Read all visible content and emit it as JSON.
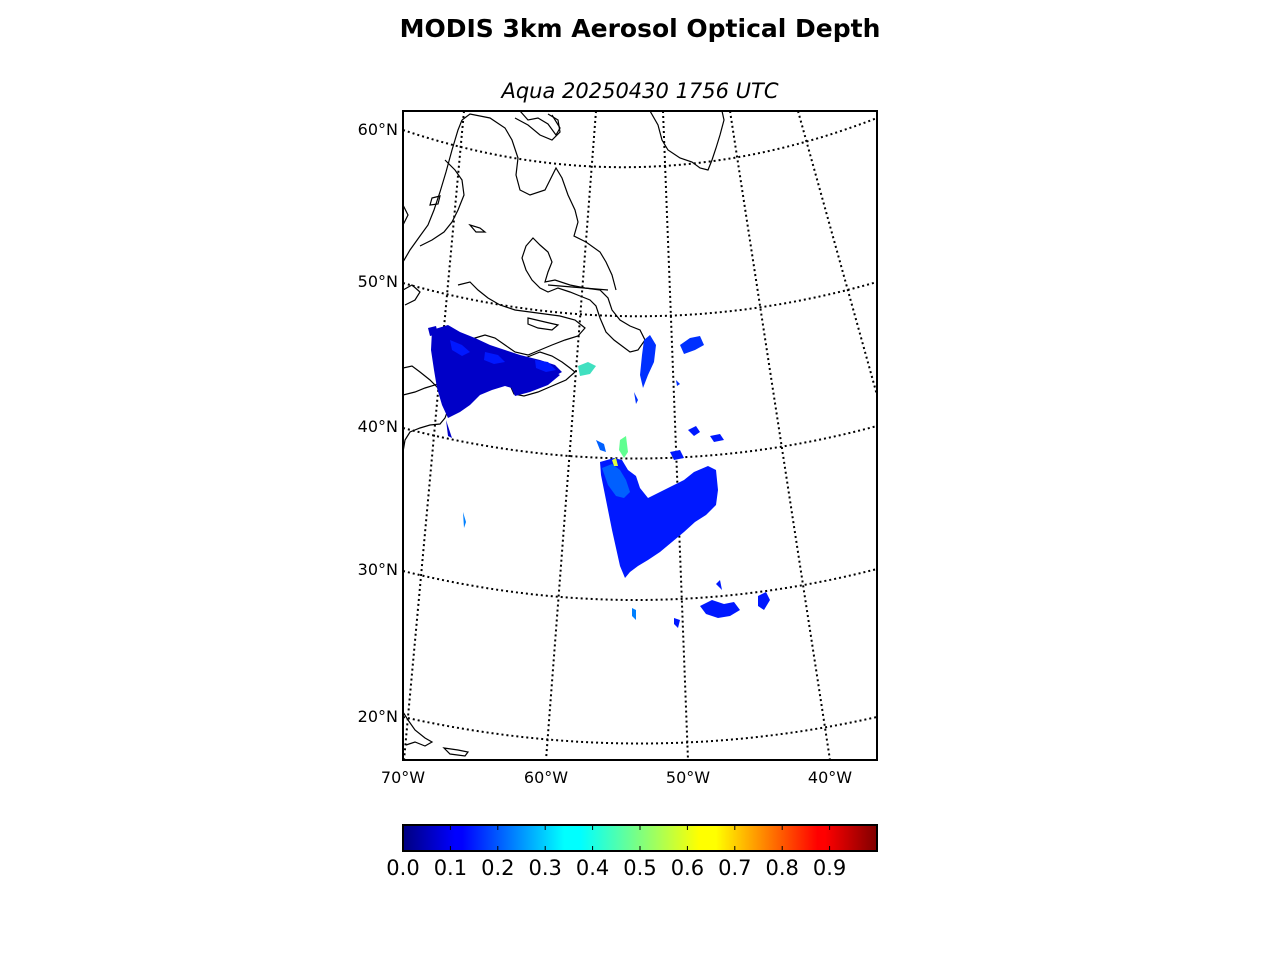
{
  "title": "MODIS 3km Aerosol Optical Depth",
  "subtitle": "Aqua 20250430 1756 UTC",
  "lat_labels": [
    "60°N",
    "50°N",
    "40°N",
    "30°N",
    "20°N"
  ],
  "lon_labels": [
    "70°W",
    "60°W",
    "50°W",
    "40°W"
  ],
  "colorbar": {
    "labels": [
      "0.0",
      "0.1",
      "0.2",
      "0.3",
      "0.4",
      "0.5",
      "0.6",
      "0.7",
      "0.8",
      "0.9"
    ],
    "range": [
      0,
      1
    ],
    "colormap": "jet"
  },
  "colors": {
    "low_aod": "#0000c8",
    "mid_aod": "#0040ff",
    "coastline": "#000000",
    "graticule": "#000000"
  }
}
